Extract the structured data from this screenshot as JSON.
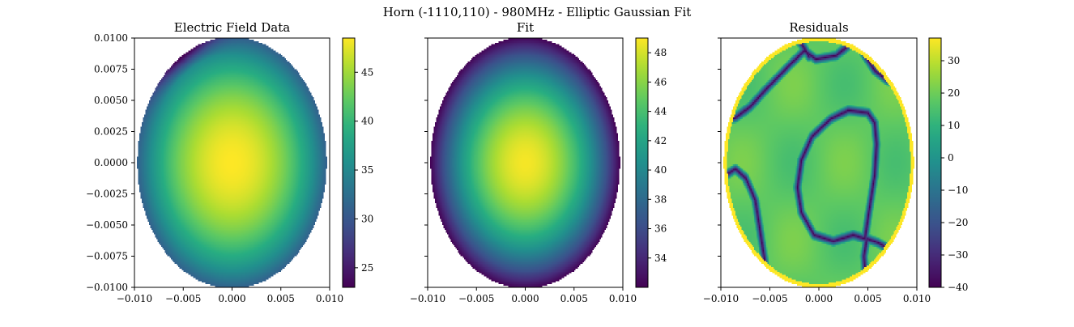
{
  "figure": {
    "suptitle": "Horn (-1110,110) - 980MHz  - Elliptic Gaussian Fit"
  },
  "chart_data": [
    {
      "type": "heatmap",
      "title": "Electric Field Data",
      "xlim": [
        -0.01,
        0.01
      ],
      "ylim": [
        -0.01,
        0.01
      ],
      "x_ticks": [
        "−0.010",
        "−0.005",
        "0.000",
        "0.005",
        "0.010"
      ],
      "y_ticks": [
        "0.0100",
        "0.0075",
        "0.0050",
        "0.0025",
        "0.0000",
        "−0.0025",
        "−0.0050",
        "−0.0075",
        "−0.0100"
      ],
      "y_tick_labels_visible": true,
      "colormap": "viridis",
      "colorbar": {
        "range": [
          23,
          48.5
        ],
        "ticks": [
          25,
          30,
          35,
          40,
          45
        ],
        "tick_labels": [
          "25",
          "30",
          "35",
          "40",
          "45"
        ]
      },
      "field": {
        "shape": "ellipse",
        "semi_axis_x": 0.0097,
        "semi_axis_y": 0.0101,
        "peak": 48.5,
        "peak_center": [
          0.0,
          0.0
        ],
        "edge_min": 23
      }
    },
    {
      "type": "heatmap",
      "title": "Fit",
      "xlim": [
        -0.01,
        0.01
      ],
      "ylim": [
        -0.01,
        0.01
      ],
      "x_ticks": [
        "−0.010",
        "−0.005",
        "0.000",
        "0.005",
        "0.010"
      ],
      "y_ticks": [
        "0.0100",
        "0.0075",
        "0.0050",
        "0.0025",
        "0.0000",
        "−0.0025",
        "−0.0050",
        "−0.0075",
        "−0.0100"
      ],
      "y_tick_labels_visible": false,
      "colormap": "viridis",
      "colorbar": {
        "range": [
          32,
          49
        ],
        "ticks": [
          34,
          36,
          38,
          40,
          42,
          44,
          46,
          48
        ],
        "tick_labels": [
          "34",
          "36",
          "38",
          "40",
          "42",
          "44",
          "46",
          "48"
        ]
      },
      "field": {
        "shape": "ellipse",
        "semi_axis_x": 0.0097,
        "semi_axis_y": 0.0101,
        "peak": 48.8,
        "peak_center": [
          0.0,
          0.0
        ],
        "edge_min": 32.1
      }
    },
    {
      "type": "heatmap",
      "title": "Residuals",
      "xlim": [
        -0.01,
        0.01
      ],
      "ylim": [
        -0.01,
        0.01
      ],
      "x_ticks": [
        "−0.010",
        "−0.005",
        "0.000",
        "0.005",
        "0.010"
      ],
      "y_ticks": [
        "0.0100",
        "0.0075",
        "0.0050",
        "0.0025",
        "0.0000",
        "−0.0025",
        "−0.0050",
        "−0.0075",
        "−0.0100"
      ],
      "y_tick_labels_visible": false,
      "colormap": "viridis",
      "colorbar": {
        "range": [
          -40,
          37
        ],
        "ticks": [
          -40,
          -30,
          -20,
          -10,
          0,
          10,
          20,
          30
        ],
        "tick_labels": [
          "−40",
          "−30",
          "−20",
          "−10",
          "0",
          "10",
          "20",
          "30"
        ]
      },
      "field": {
        "shape": "ellipse",
        "semi_axis_x": 0.0097,
        "semi_axis_y": 0.0101,
        "typical_value": 18,
        "rim_value": 37,
        "contour_min": -40
      }
    }
  ]
}
